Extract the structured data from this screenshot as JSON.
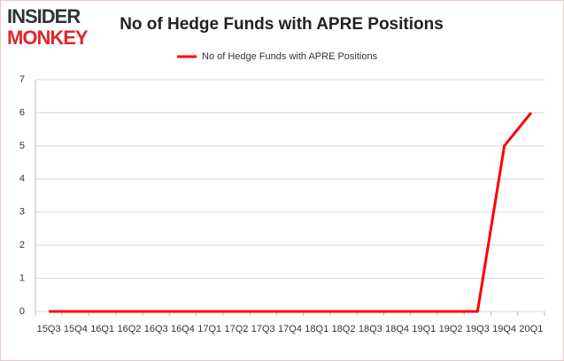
{
  "logo": {
    "top": "INSIDER",
    "bottom": "MONKEY"
  },
  "chart_data": {
    "type": "line",
    "title": "No of Hedge Funds with APRE Positions",
    "categories": [
      "15Q3",
      "15Q4",
      "16Q1",
      "16Q2",
      "16Q3",
      "16Q4",
      "17Q1",
      "17Q2",
      "17Q3",
      "17Q4",
      "18Q1",
      "18Q2",
      "18Q3",
      "18Q4",
      "19Q1",
      "19Q2",
      "19Q3",
      "19Q4",
      "20Q1"
    ],
    "series": [
      {
        "name": "No of Hedge Funds with APRE Positions",
        "color": "#ff0000",
        "values": [
          0,
          0,
          0,
          0,
          0,
          0,
          0,
          0,
          0,
          0,
          0,
          0,
          0,
          0,
          0,
          0,
          0,
          5,
          6
        ]
      }
    ],
    "ylim": [
      0,
      7
    ],
    "yticks": [
      0,
      1,
      2,
      3,
      4,
      5,
      6,
      7
    ],
    "grid": true,
    "legend": "top"
  }
}
